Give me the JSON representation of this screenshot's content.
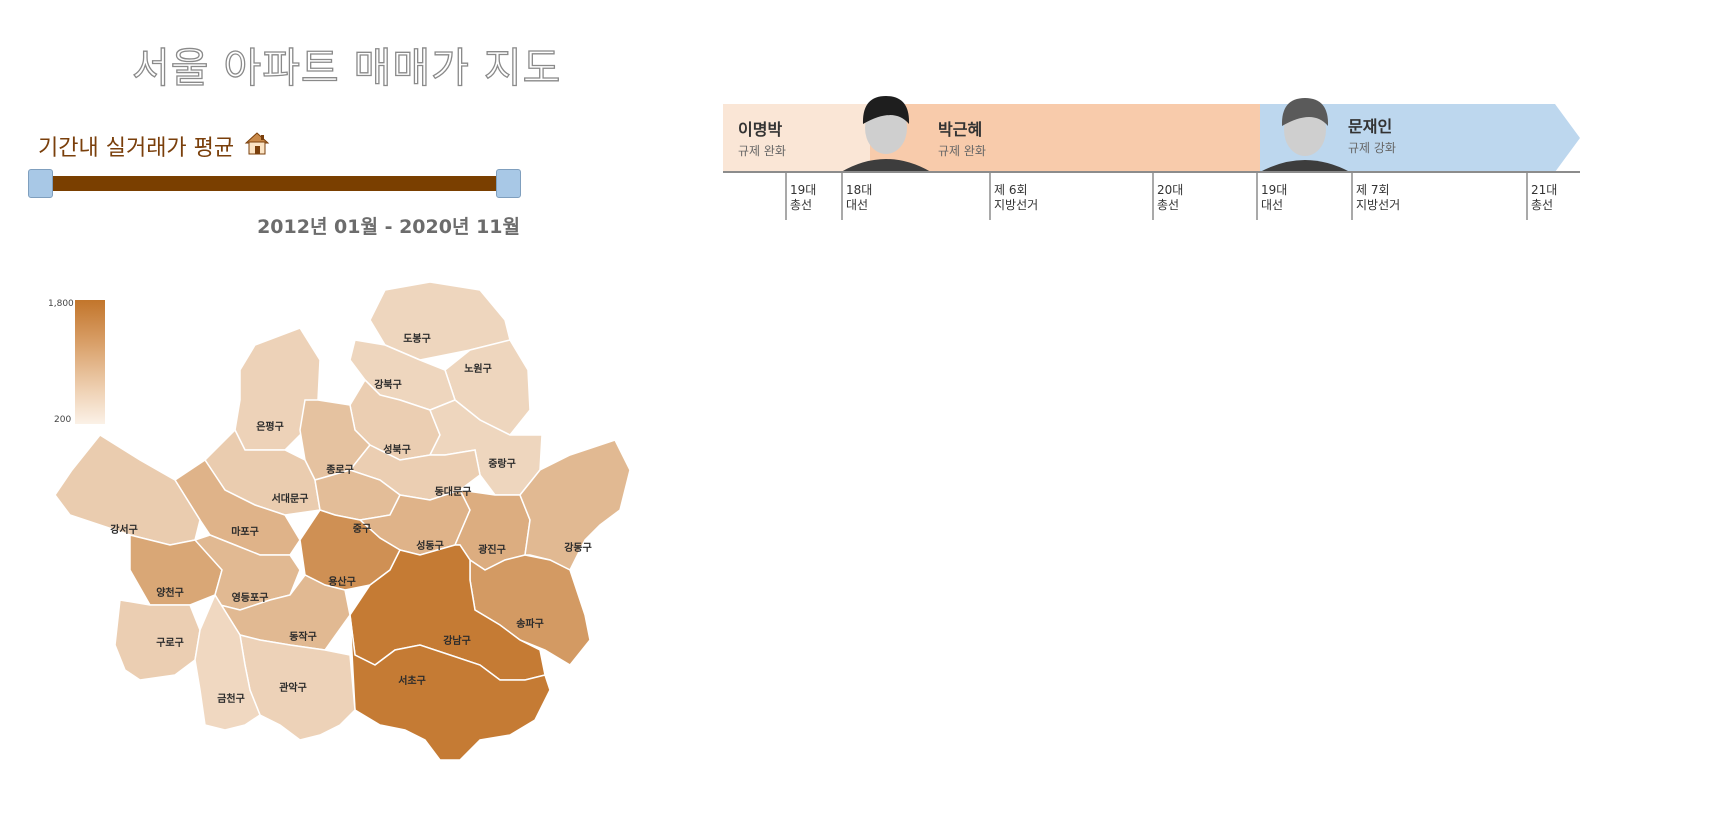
{
  "title": "서울 아파트 매매가 지도",
  "period": {
    "label": "기간내 실거래가 평균",
    "icon": "house-icon",
    "range_text": "2012년 01월 - 2020년 11월"
  },
  "legend": {
    "max_label": "1,800",
    "min_label": "200",
    "color_high": "#c2752b",
    "color_low": "#fbf1e7"
  },
  "districts": [
    {
      "name": "도봉구",
      "value": 0.22
    },
    {
      "name": "노원구",
      "value": 0.22
    },
    {
      "name": "강북구",
      "value": 0.22
    },
    {
      "name": "은평구",
      "value": 0.25
    },
    {
      "name": "성북구",
      "value": 0.28
    },
    {
      "name": "종로구",
      "value": 0.38
    },
    {
      "name": "중랑구",
      "value": 0.22
    },
    {
      "name": "동대문구",
      "value": 0.28
    },
    {
      "name": "서대문구",
      "value": 0.3
    },
    {
      "name": "마포구",
      "value": 0.5
    },
    {
      "name": "중구",
      "value": 0.42
    },
    {
      "name": "성동구",
      "value": 0.5
    },
    {
      "name": "광진구",
      "value": 0.55
    },
    {
      "name": "강동구",
      "value": 0.45
    },
    {
      "name": "강서구",
      "value": 0.3
    },
    {
      "name": "양천구",
      "value": 0.6
    },
    {
      "name": "영등포구",
      "value": 0.45
    },
    {
      "name": "용산구",
      "value": 0.78
    },
    {
      "name": "송파구",
      "value": 0.7
    },
    {
      "name": "동작구",
      "value": 0.45
    },
    {
      "name": "강남구",
      "value": 0.95
    },
    {
      "name": "구로구",
      "value": 0.28
    },
    {
      "name": "서초구",
      "value": 0.95
    },
    {
      "name": "관악구",
      "value": 0.25
    },
    {
      "name": "금천구",
      "value": 0.2
    }
  ],
  "timeline": {
    "presidents": [
      {
        "name": "이명박",
        "policy": "규제 완화",
        "color": "#fae6d6"
      },
      {
        "name": "박근혜",
        "policy": "규제 완화",
        "color": "#f8cbab"
      },
      {
        "name": "문재인",
        "policy": "규제 강화",
        "color": "#bdd7ee"
      }
    ],
    "events": [
      {
        "line1": "19대",
        "line2": "총선"
      },
      {
        "line1": "18대",
        "line2": "대선"
      },
      {
        "line1": "제 6회",
        "line2": "지방선거"
      },
      {
        "line1": "20대",
        "line2": "총선"
      },
      {
        "line1": "19대",
        "line2": "대선"
      },
      {
        "line1": "제 7회",
        "line2": "지방선거"
      },
      {
        "line1": "21대",
        "line2": "총선"
      }
    ]
  }
}
